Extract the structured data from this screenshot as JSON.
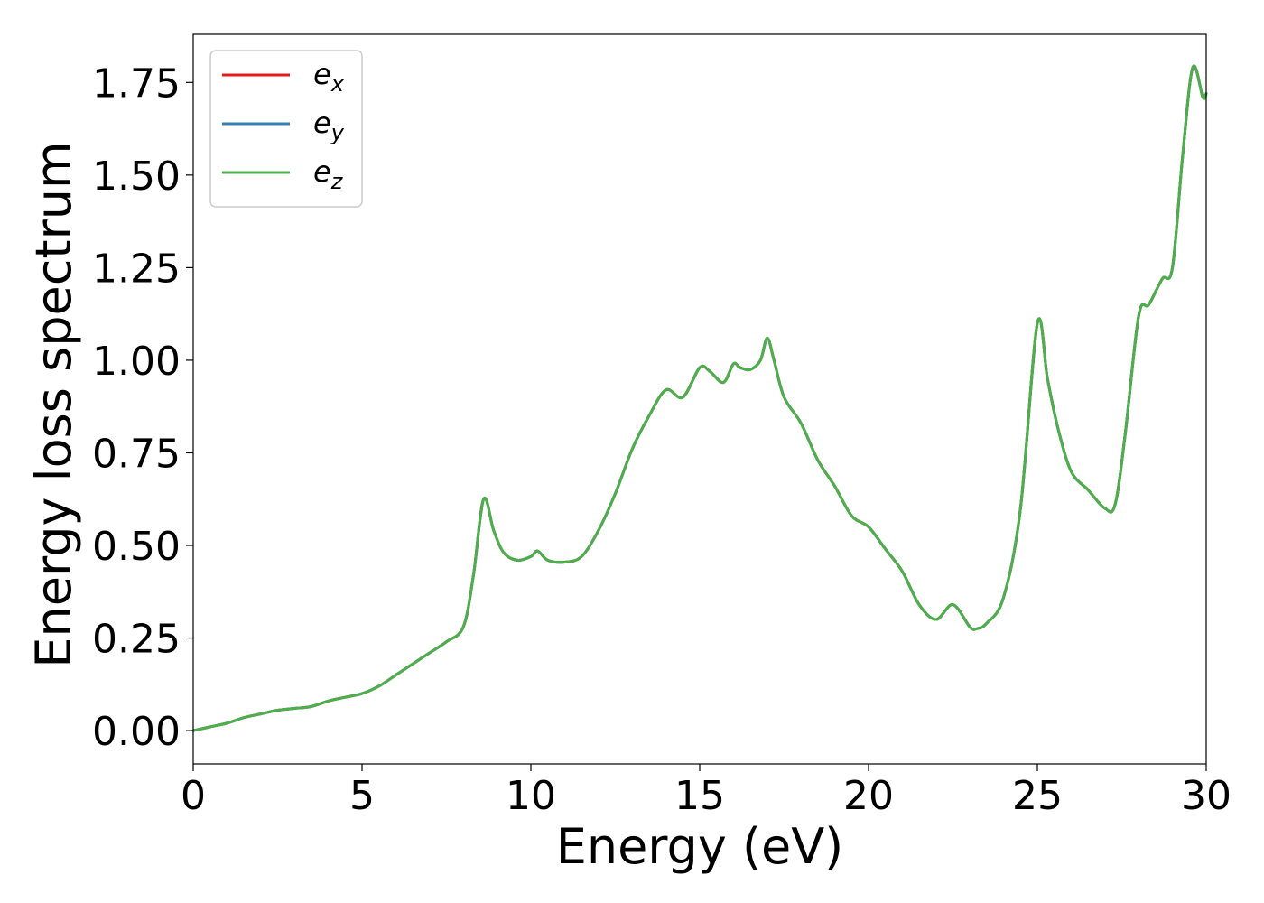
{
  "chart_data": {
    "type": "line",
    "title": "",
    "xlabel": "Energy (eV)",
    "ylabel": "Energy loss spectrum",
    "xlim": [
      0,
      30
    ],
    "ylim": [
      -0.09,
      1.88
    ],
    "xticks": [
      0,
      5,
      10,
      15,
      20,
      25,
      30
    ],
    "xtick_labels": [
      "0",
      "5",
      "10",
      "15",
      "20",
      "25",
      "30"
    ],
    "yticks": [
      0.0,
      0.25,
      0.5,
      0.75,
      1.0,
      1.25,
      1.5,
      1.75
    ],
    "ytick_labels": [
      "0.00",
      "0.25",
      "0.50",
      "0.75",
      "1.00",
      "1.25",
      "1.50",
      "1.75"
    ],
    "grid": false,
    "legend_position": "top-left",
    "x": [
      0,
      0.5,
      1,
      1.5,
      2,
      2.5,
      3,
      3.5,
      4,
      4.5,
      5,
      5.5,
      6,
      6.5,
      7,
      7.5,
      8,
      8.3,
      8.6,
      8.9,
      9.2,
      9.6,
      10,
      10.2,
      10.5,
      11,
      11.5,
      12,
      12.5,
      13,
      13.5,
      14,
      14.5,
      15,
      15.3,
      15.7,
      16,
      16.2,
      16.5,
      16.8,
      17,
      17.2,
      17.5,
      18,
      18.5,
      19,
      19.5,
      20,
      20.5,
      21,
      21.5,
      22,
      22.5,
      23,
      23.2,
      23.5,
      24,
      24.5,
      25,
      25.3,
      25.6,
      26,
      26.5,
      27,
      27.3,
      27.6,
      28,
      28.3,
      28.7,
      29,
      29.3,
      29.6,
      29.9,
      30
    ],
    "series": [
      {
        "name": "e_x",
        "color": "#e41a1c",
        "values": [
          0,
          0.01,
          0.02,
          0.035,
          0.045,
          0.055,
          0.06,
          0.065,
          0.08,
          0.09,
          0.1,
          0.12,
          0.15,
          0.18,
          0.21,
          0.24,
          0.28,
          0.42,
          0.625,
          0.54,
          0.48,
          0.46,
          0.47,
          0.485,
          0.46,
          0.455,
          0.47,
          0.54,
          0.64,
          0.76,
          0.85,
          0.92,
          0.9,
          0.98,
          0.97,
          0.94,
          0.99,
          0.98,
          0.975,
          1.0,
          1.06,
          1.0,
          0.9,
          0.83,
          0.73,
          0.66,
          0.58,
          0.55,
          0.49,
          0.43,
          0.34,
          0.3,
          0.34,
          0.28,
          0.275,
          0.29,
          0.36,
          0.6,
          1.1,
          0.95,
          0.82,
          0.7,
          0.65,
          0.6,
          0.61,
          0.8,
          1.12,
          1.15,
          1.22,
          1.25,
          1.55,
          1.79,
          1.71,
          1.72
        ]
      },
      {
        "name": "e_y",
        "color": "#377eb8",
        "values": [
          0,
          0.01,
          0.02,
          0.035,
          0.045,
          0.055,
          0.06,
          0.065,
          0.08,
          0.09,
          0.1,
          0.12,
          0.15,
          0.18,
          0.21,
          0.24,
          0.28,
          0.42,
          0.625,
          0.54,
          0.48,
          0.46,
          0.47,
          0.485,
          0.46,
          0.455,
          0.47,
          0.54,
          0.64,
          0.76,
          0.85,
          0.92,
          0.9,
          0.98,
          0.97,
          0.94,
          0.99,
          0.98,
          0.975,
          1.0,
          1.06,
          1.0,
          0.9,
          0.83,
          0.73,
          0.66,
          0.58,
          0.55,
          0.49,
          0.43,
          0.34,
          0.3,
          0.34,
          0.28,
          0.275,
          0.29,
          0.36,
          0.6,
          1.1,
          0.95,
          0.82,
          0.7,
          0.65,
          0.6,
          0.61,
          0.8,
          1.12,
          1.15,
          1.22,
          1.25,
          1.55,
          1.79,
          1.71,
          1.72
        ]
      },
      {
        "name": "e_z",
        "color": "#4daf4a",
        "values": [
          0,
          0.01,
          0.02,
          0.035,
          0.045,
          0.055,
          0.06,
          0.065,
          0.08,
          0.09,
          0.1,
          0.12,
          0.15,
          0.18,
          0.21,
          0.24,
          0.28,
          0.42,
          0.625,
          0.54,
          0.48,
          0.46,
          0.47,
          0.485,
          0.46,
          0.455,
          0.47,
          0.54,
          0.64,
          0.76,
          0.85,
          0.92,
          0.9,
          0.98,
          0.97,
          0.94,
          0.99,
          0.98,
          0.975,
          1.0,
          1.06,
          1.0,
          0.9,
          0.83,
          0.73,
          0.66,
          0.58,
          0.55,
          0.49,
          0.43,
          0.34,
          0.3,
          0.34,
          0.28,
          0.275,
          0.29,
          0.36,
          0.6,
          1.1,
          0.95,
          0.82,
          0.7,
          0.65,
          0.6,
          0.61,
          0.8,
          1.12,
          1.15,
          1.22,
          1.25,
          1.55,
          1.79,
          1.71,
          1.72
        ]
      }
    ],
    "legend": [
      {
        "base": "e",
        "sub": "x",
        "color": "#e41a1c"
      },
      {
        "base": "e",
        "sub": "y",
        "color": "#377eb8"
      },
      {
        "base": "e",
        "sub": "z",
        "color": "#4daf4a"
      }
    ]
  }
}
